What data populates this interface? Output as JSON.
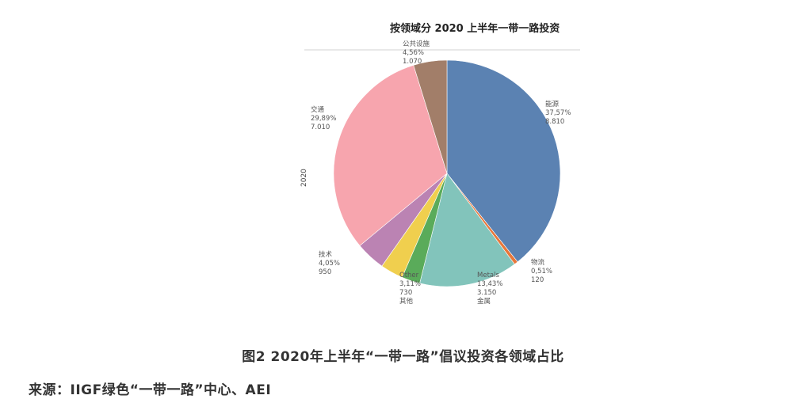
{
  "chart_data": {
    "type": "pie",
    "title": "按领域分 2020 上半年一带一路投资",
    "side_label": "2020",
    "slices": [
      {
        "lines": [
          "能源",
          "37,57%",
          "8.810"
        ],
        "value": 37.57,
        "color": "#5b82b2"
      },
      {
        "lines": [
          "物流",
          "0,51%",
          "120"
        ],
        "value": 0.51,
        "color": "#e8773a"
      },
      {
        "lines": [
          "Metals",
          "13,43%",
          "3.150",
          "金属"
        ],
        "value": 13.43,
        "color": "#82c4bb"
      },
      {
        "lines": [
          "",
          "",
          ""
        ],
        "value": 2.5,
        "color": "#5aab5a"
      },
      {
        "lines": [
          "Other",
          "3,11%",
          "730",
          "其他"
        ],
        "value": 3.11,
        "color": "#f0cf4e"
      },
      {
        "lines": [
          "技术",
          "4,05%",
          "950"
        ],
        "value": 4.05,
        "color": "#bb83b3"
      },
      {
        "lines": [
          "交通",
          "29,89%",
          "7.010"
        ],
        "value": 29.89,
        "color": "#f7a5ae"
      },
      {
        "lines": [
          "公共设施",
          "4,56%",
          "1.070"
        ],
        "value": 4.56,
        "color": "#a27e69"
      }
    ]
  },
  "caption": "图2 2020年上半年“一带一路”倡议投资各领域占比",
  "source": "来源：IIGF绿色“一带一路”中心、AEI"
}
